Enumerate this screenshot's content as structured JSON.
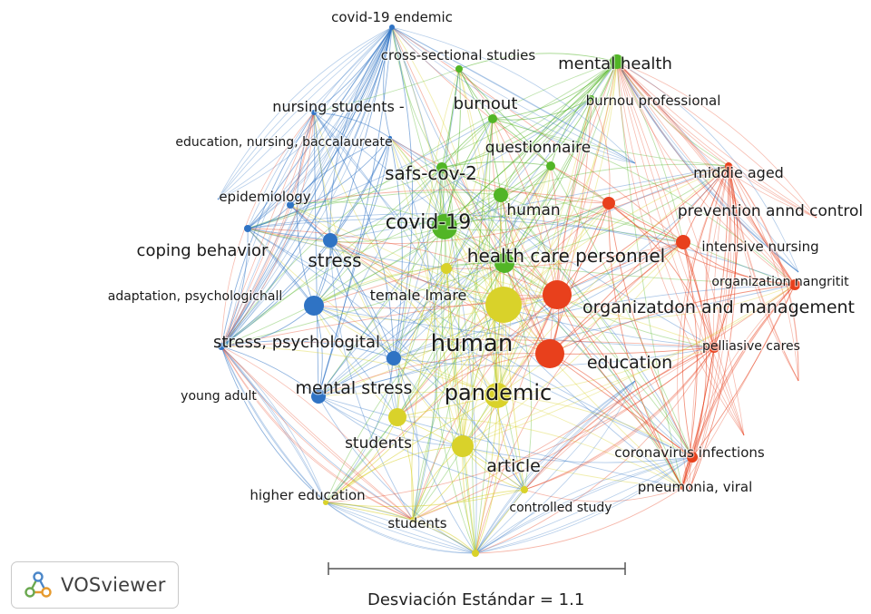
{
  "colors": {
    "red": "#e8401c",
    "green": "#52b526",
    "blue": "#2f73c4",
    "yellow": "#d9d22a"
  },
  "nodes": [
    {
      "id": "covid19_endemic",
      "label": "covid-19 endemic",
      "cluster": "blue",
      "weight": 1
    },
    {
      "id": "cross_sectional",
      "label": "cross-sectional studies",
      "cluster": "green",
      "weight": 1
    },
    {
      "id": "mental_health",
      "label": "mental health",
      "cluster": "green",
      "weight": 2
    },
    {
      "id": "nursing_students",
      "label": "nursing students -",
      "cluster": "blue",
      "weight": 1
    },
    {
      "id": "burnout",
      "label": "burnout",
      "cluster": "green",
      "weight": 1
    },
    {
      "id": "burnout_prof",
      "label": "burnou professional",
      "cluster": "green",
      "weight": 1
    },
    {
      "id": "edu_nursing",
      "label": "education, nursing, baccalaureate",
      "cluster": "blue",
      "weight": 1
    },
    {
      "id": "questionnaire",
      "label": "questionnaire",
      "cluster": "green",
      "weight": 1
    },
    {
      "id": "middle_aged",
      "label": "middie aged",
      "cluster": "red",
      "weight": 1
    },
    {
      "id": "sars_cov2",
      "label": "safs-cov-2",
      "cluster": "green",
      "weight": 2
    },
    {
      "id": "epidemiology",
      "label": "epidemiology",
      "cluster": "blue",
      "weight": 1
    },
    {
      "id": "human_g",
      "label": "human",
      "cluster": "green",
      "weight": 2
    },
    {
      "id": "prevention",
      "label": "prevention annd control",
      "cluster": "red",
      "weight": 2
    },
    {
      "id": "covid19",
      "label": "covid-19",
      "cluster": "green",
      "weight": 4
    },
    {
      "id": "coping",
      "label": "coping behavior",
      "cluster": "blue",
      "weight": 2
    },
    {
      "id": "stress",
      "label": "stress",
      "cluster": "blue",
      "weight": 2
    },
    {
      "id": "hcp",
      "label": "health care personnel",
      "cluster": "green",
      "weight": 3
    },
    {
      "id": "intensive",
      "label": "intensive nursing",
      "cluster": "red",
      "weight": 2
    },
    {
      "id": "org_nangritit",
      "label": "organization nangritit",
      "cluster": "red",
      "weight": 1
    },
    {
      "id": "adaptation",
      "label": "adaptation, psychologichall",
      "cluster": "blue",
      "weight": 1
    },
    {
      "id": "female_male",
      "label": "temale lmare",
      "cluster": "yellow",
      "weight": 2
    },
    {
      "id": "org_mgmt",
      "label": "organizatdon and management",
      "cluster": "red",
      "weight": 4
    },
    {
      "id": "stress_psych",
      "label": "stress, psychologital",
      "cluster": "blue",
      "weight": 3
    },
    {
      "id": "human_y",
      "label": "human",
      "cluster": "yellow",
      "weight": 5
    },
    {
      "id": "palliative",
      "label": "pelliasive cares",
      "cluster": "red",
      "weight": 1
    },
    {
      "id": "education",
      "label": "education",
      "cluster": "red",
      "weight": 4
    },
    {
      "id": "young_adult",
      "label": "young adult",
      "cluster": "blue",
      "weight": 1
    },
    {
      "id": "mental_stress",
      "label": "mental stress",
      "cluster": "blue",
      "weight": 3
    },
    {
      "id": "pandemic",
      "label": "pandemic",
      "cluster": "yellow",
      "weight": 4
    },
    {
      "id": "students1",
      "label": "students",
      "cluster": "yellow",
      "weight": 2
    },
    {
      "id": "coronavirus",
      "label": "coronavirus infections",
      "cluster": "red",
      "weight": 1
    },
    {
      "id": "article",
      "label": "article",
      "cluster": "yellow",
      "weight": 3
    },
    {
      "id": "higher_edu",
      "label": "higher education",
      "cluster": "yellow",
      "weight": 1
    },
    {
      "id": "pneumonia",
      "label": "pneumonia, viral",
      "cluster": "red",
      "weight": 1
    },
    {
      "id": "controlled",
      "label": "controlled study",
      "cluster": "yellow",
      "weight": 1
    },
    {
      "id": "students2",
      "label": "students",
      "cluster": "yellow",
      "weight": 1
    },
    {
      "id": "bottom_y",
      "label": "",
      "cluster": "yellow",
      "weight": 1
    }
  ],
  "logo": {
    "text": "VOSviewer",
    "icon": "vosviewer-logo-icon"
  },
  "scale": {
    "text": "Desviación Estándar = 1.1"
  }
}
